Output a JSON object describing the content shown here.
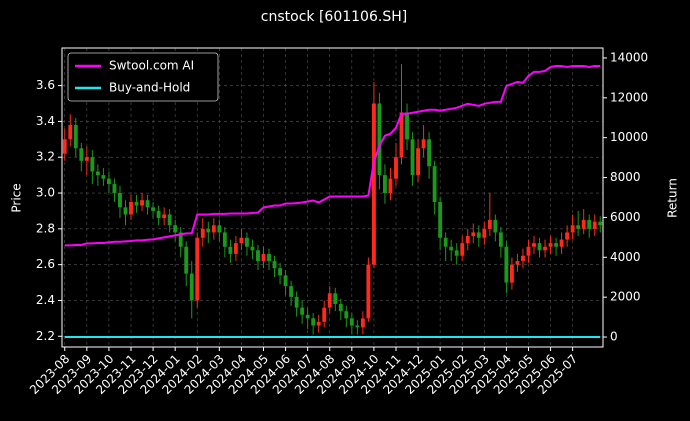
{
  "chart_data": {
    "type": "candlestick",
    "title": "cnstock [601106.SH]",
    "ylabel": "Price",
    "y2label": "Return",
    "categories": [
      "2023-08",
      null,
      null,
      null,
      "2023-09",
      null,
      null,
      null,
      "2023-10",
      null,
      null,
      null,
      "2023-11",
      null,
      null,
      null,
      "2023-12",
      null,
      null,
      null,
      "2024-01",
      null,
      null,
      null,
      "2024-02",
      null,
      null,
      null,
      "2024-03",
      null,
      null,
      null,
      "2024-04",
      null,
      null,
      null,
      "2024-05",
      null,
      null,
      null,
      "2024-06",
      null,
      null,
      null,
      "2024-07",
      null,
      null,
      null,
      "2024-08",
      null,
      null,
      null,
      "2024-09",
      null,
      null,
      null,
      "2024-10",
      null,
      null,
      null,
      "2024-11",
      null,
      null,
      null,
      "2024-12",
      null,
      null,
      null,
      "2025-01",
      null,
      null,
      null,
      "2025-02",
      null,
      null,
      null,
      "2025-03",
      null,
      null,
      null,
      "2025-04",
      null,
      null,
      null,
      "2025-05",
      null,
      null,
      null,
      "2025-06",
      null,
      null,
      null,
      "2025-07",
      null,
      null,
      null,
      null,
      null
    ],
    "open": [
      3.22,
      3.3,
      3.38,
      3.25,
      3.18,
      3.2,
      3.12,
      3.1,
      3.08,
      3.05,
      3.0,
      2.92,
      2.88,
      2.95,
      2.93,
      2.96,
      2.92,
      2.9,
      2.86,
      2.88,
      2.82,
      2.78,
      2.7,
      2.55,
      2.4,
      2.75,
      2.8,
      2.78,
      2.82,
      2.78,
      2.7,
      2.66,
      2.72,
      2.75,
      2.7,
      2.68,
      2.62,
      2.66,
      2.62,
      2.58,
      2.54,
      2.48,
      2.42,
      2.36,
      2.32,
      2.3,
      2.26,
      2.28,
      2.36,
      2.44,
      2.38,
      2.34,
      2.3,
      2.26,
      2.25,
      2.3,
      2.6,
      3.5,
      3.1,
      3.0,
      3.08,
      3.2,
      3.45,
      3.3,
      3.1,
      3.25,
      3.3,
      3.15,
      2.95,
      2.75,
      2.7,
      2.68,
      2.65,
      2.72,
      2.76,
      2.78,
      2.75,
      2.8,
      2.85,
      2.78,
      2.7,
      2.5,
      2.6,
      2.62,
      2.65,
      2.7,
      2.72,
      2.68,
      2.7,
      2.72,
      2.7,
      2.74,
      2.78,
      2.82,
      2.8,
      2.85,
      2.8,
      2.84
    ],
    "high": [
      3.36,
      3.44,
      3.42,
      3.28,
      3.26,
      3.24,
      3.16,
      3.14,
      3.12,
      3.08,
      3.04,
      2.96,
      2.99,
      2.99,
      3.0,
      2.99,
      2.95,
      2.93,
      2.92,
      2.91,
      2.85,
      2.81,
      2.73,
      2.62,
      2.78,
      2.86,
      2.84,
      2.86,
      2.85,
      2.81,
      2.74,
      2.76,
      2.8,
      2.78,
      2.74,
      2.71,
      2.7,
      2.69,
      2.65,
      2.61,
      2.57,
      2.51,
      2.45,
      2.4,
      2.36,
      2.33,
      2.32,
      2.4,
      2.48,
      2.47,
      2.41,
      2.37,
      2.33,
      2.29,
      2.34,
      2.64,
      3.62,
      3.56,
      3.16,
      3.14,
      3.28,
      3.72,
      3.5,
      3.34,
      3.3,
      3.38,
      3.34,
      3.18,
      2.98,
      2.78,
      2.74,
      2.72,
      2.76,
      2.8,
      2.83,
      2.82,
      2.84,
      3.0,
      2.88,
      2.81,
      2.73,
      2.64,
      2.66,
      2.69,
      2.74,
      2.76,
      2.75,
      2.74,
      2.76,
      2.75,
      2.78,
      2.82,
      2.88,
      2.9,
      2.91,
      2.88,
      2.88,
      2.87
    ],
    "low": [
      3.18,
      3.26,
      3.2,
      3.12,
      3.1,
      3.05,
      3.04,
      3.04,
      3.0,
      2.95,
      2.86,
      2.82,
      2.85,
      2.89,
      2.9,
      2.88,
      2.86,
      2.82,
      2.82,
      2.78,
      2.73,
      2.64,
      2.48,
      2.3,
      2.36,
      2.7,
      2.72,
      2.74,
      2.73,
      2.64,
      2.61,
      2.62,
      2.68,
      2.65,
      2.63,
      2.57,
      2.58,
      2.57,
      2.53,
      2.49,
      2.43,
      2.37,
      2.31,
      2.27,
      2.24,
      2.21,
      2.22,
      2.25,
      2.33,
      2.34,
      2.29,
      2.25,
      2.21,
      2.21,
      2.21,
      2.28,
      2.58,
      3.02,
      2.94,
      2.96,
      3.04,
      3.16,
      3.24,
      3.04,
      3.06,
      3.2,
      3.08,
      2.88,
      2.68,
      2.62,
      2.62,
      2.6,
      2.62,
      2.68,
      2.72,
      2.7,
      2.71,
      2.76,
      2.73,
      2.64,
      2.44,
      2.46,
      2.56,
      2.58,
      2.61,
      2.66,
      2.64,
      2.64,
      2.66,
      2.65,
      2.66,
      2.7,
      2.74,
      2.76,
      2.77,
      2.75,
      2.76,
      2.78
    ],
    "close": [
      3.3,
      3.38,
      3.25,
      3.18,
      3.2,
      3.12,
      3.1,
      3.08,
      3.05,
      3.0,
      2.92,
      2.88,
      2.95,
      2.93,
      2.96,
      2.92,
      2.9,
      2.86,
      2.88,
      2.82,
      2.78,
      2.7,
      2.55,
      2.4,
      2.75,
      2.8,
      2.78,
      2.82,
      2.78,
      2.7,
      2.66,
      2.72,
      2.75,
      2.7,
      2.68,
      2.62,
      2.66,
      2.62,
      2.58,
      2.54,
      2.48,
      2.42,
      2.36,
      2.32,
      2.3,
      2.26,
      2.28,
      2.36,
      2.44,
      2.38,
      2.34,
      2.3,
      2.26,
      2.25,
      2.3,
      2.6,
      3.5,
      3.1,
      3.0,
      3.08,
      3.2,
      3.45,
      3.3,
      3.1,
      3.25,
      3.3,
      3.15,
      2.95,
      2.75,
      2.7,
      2.68,
      2.65,
      2.72,
      2.76,
      2.78,
      2.75,
      2.8,
      2.85,
      2.78,
      2.7,
      2.5,
      2.6,
      2.62,
      2.65,
      2.7,
      2.72,
      2.68,
      2.7,
      2.72,
      2.7,
      2.74,
      2.78,
      2.82,
      2.8,
      2.85,
      2.8,
      2.84,
      2.82
    ],
    "up_color": "#ff2a1a",
    "down_color": "#1a9a1a",
    "series": [
      {
        "name": "Swtool.com AI",
        "color": "#ff00ff",
        "axis": "y2",
        "values": [
          4600,
          4600,
          4620,
          4620,
          4700,
          4700,
          4720,
          4720,
          4750,
          4780,
          4780,
          4800,
          4820,
          4850,
          4850,
          4880,
          4900,
          4950,
          5000,
          5050,
          5100,
          5150,
          5200,
          5200,
          6150,
          6150,
          6150,
          6180,
          6180,
          6180,
          6200,
          6200,
          6200,
          6200,
          6220,
          6250,
          6500,
          6550,
          6600,
          6600,
          6700,
          6700,
          6720,
          6750,
          6800,
          6850,
          6750,
          6900,
          7050,
          7050,
          7050,
          7050,
          7050,
          7050,
          7050,
          7100,
          8800,
          9600,
          10100,
          10200,
          10500,
          11200,
          11200,
          11250,
          11300,
          11350,
          11400,
          11400,
          11350,
          11400,
          11450,
          11500,
          11600,
          11700,
          11650,
          11600,
          11700,
          11750,
          11800,
          11800,
          12600,
          12700,
          12800,
          12750,
          13100,
          13300,
          13300,
          13350,
          13550,
          13600,
          13600,
          13550,
          13600,
          13600,
          13600,
          13550,
          13600,
          13600
        ]
      },
      {
        "name": "Buy-and-Hold",
        "color": "#22e5ee",
        "axis": "y2",
        "values": [
          0,
          0,
          0,
          0,
          0,
          0,
          0,
          0,
          0,
          0,
          0,
          0,
          0,
          0,
          0,
          0,
          0,
          0,
          0,
          0,
          0,
          0,
          0,
          0,
          0,
          0,
          0,
          0,
          0,
          0,
          0,
          0,
          0,
          0,
          0,
          0,
          0,
          0,
          0,
          0,
          0,
          0,
          0,
          0,
          0,
          0,
          0,
          0,
          0,
          0,
          0,
          0,
          0,
          0,
          0,
          0,
          0,
          0,
          0,
          0,
          0,
          0,
          0,
          0,
          0,
          0,
          0,
          0,
          0,
          0,
          0,
          0,
          0,
          0,
          0,
          0,
          0,
          0,
          0,
          0,
          0,
          0,
          0,
          0,
          0,
          0,
          0,
          0,
          0,
          0,
          0,
          0,
          0,
          0,
          0,
          0,
          0,
          0
        ]
      }
    ],
    "ylim": [
      2.14,
      3.81
    ],
    "yticks": [
      2.2,
      2.4,
      2.6,
      2.8,
      {
        "value": 3,
        "label": "3.0"
      },
      3.2,
      3.4,
      3.6
    ],
    "y2lim": [
      -500,
      14500
    ],
    "y2ticks": [
      0,
      2000,
      4000,
      6000,
      8000,
      10000,
      12000,
      14000
    ],
    "grid": true,
    "legend": "upper left"
  }
}
